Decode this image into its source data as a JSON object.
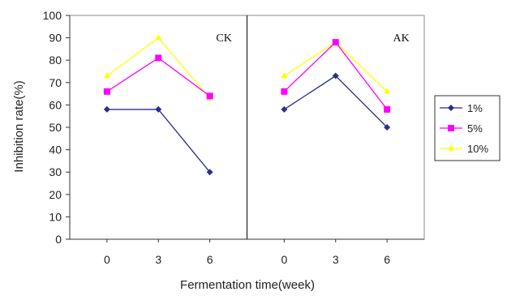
{
  "chart_data": {
    "type": "line",
    "xlabel": "Fermentation time(week)",
    "ylabel": "Inhibition rate(%)",
    "ylim": [
      0,
      100
    ],
    "yticks": [
      0,
      10,
      20,
      30,
      40,
      50,
      60,
      70,
      80,
      90,
      100
    ],
    "grid": false,
    "legend_position": "right",
    "panels": [
      {
        "label": "CK",
        "categories": [
          "0",
          "3",
          "6"
        ],
        "series": [
          {
            "name": "1%",
            "color": "#2b2f8c",
            "marker": "diamond",
            "values": [
              58,
              58,
              30
            ]
          },
          {
            "name": "5%",
            "color": "#ff00ff",
            "marker": "square",
            "values": [
              66,
              81,
              64
            ]
          },
          {
            "name": "10%",
            "color": "#ffff00",
            "marker": "triangle",
            "values": [
              73,
              90,
              63
            ]
          }
        ]
      },
      {
        "label": "AK",
        "categories": [
          "0",
          "3",
          "6"
        ],
        "series": [
          {
            "name": "1%",
            "color": "#2b2f8c",
            "marker": "diamond",
            "values": [
              58,
              73,
              50
            ]
          },
          {
            "name": "5%",
            "color": "#ff00ff",
            "marker": "square",
            "values": [
              66,
              88,
              58
            ]
          },
          {
            "name": "10%",
            "color": "#ffff00",
            "marker": "triangle",
            "values": [
              73,
              88,
              66
            ]
          }
        ]
      }
    ]
  }
}
